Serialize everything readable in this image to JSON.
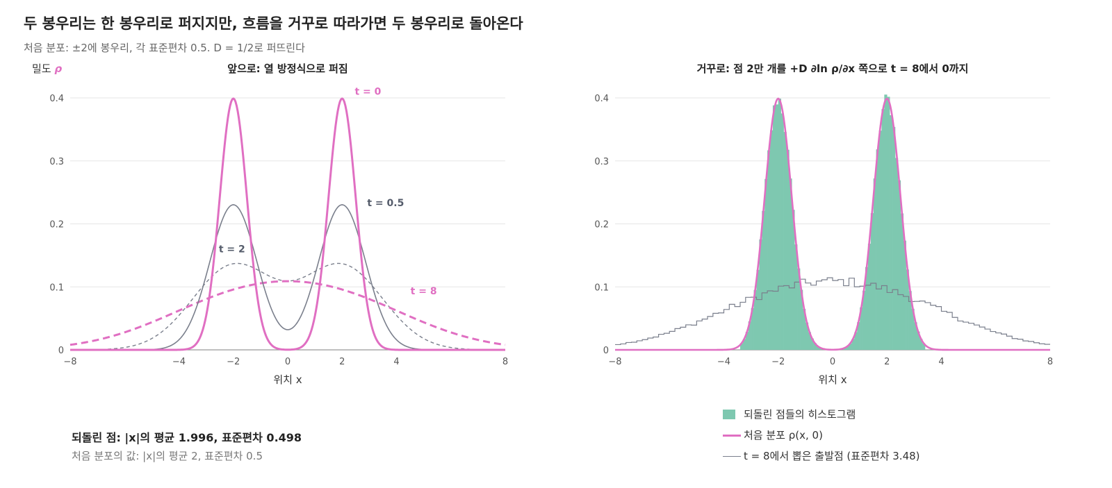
{
  "title": "두 봉우리는 한 봉우리로 퍼지지만, 흐름을 거꾸로 따라가면 두 봉우리로 돌아온다",
  "subtitle": "처음 분포: ±2에 봉우리, 각 표준편차 0.5. D = 1/2로 퍼뜨린다",
  "colors": {
    "pink": "#e06fc2",
    "gray": "#7a7f8c",
    "green": "#7ec8b0",
    "grid": "#e6e6e6"
  },
  "chart_data": [
    {
      "type": "line",
      "title": "앞으로: 열 방정식으로 퍼짐",
      "xlabel": "위치 x",
      "ylabel": "밀도 ρ",
      "xlim": [
        -8,
        8
      ],
      "ylim": [
        0,
        0.4
      ],
      "xticks": [
        "−8",
        "−4",
        "−2",
        "0",
        "2",
        "4",
        "8"
      ],
      "xtick_values": [
        -8,
        -4,
        -2,
        0,
        2,
        4,
        8
      ],
      "yticks": [
        "0",
        "0.1",
        "0.2",
        "0.3",
        "0.4"
      ],
      "ytick_values": [
        0,
        0.1,
        0.2,
        0.3,
        0.4
      ],
      "grid": true,
      "model": "mixture of two normals at ±2, variance 0.25 + t",
      "series": [
        {
          "name": "t = 0",
          "t": 0,
          "color": "#e06fc2",
          "style": "solid-bold"
        },
        {
          "name": "t = 0.5",
          "t": 0.5,
          "color": "#7a7f8c",
          "style": "solid"
        },
        {
          "name": "t = 2",
          "t": 2,
          "color": "#7a7f8c",
          "style": "dashed"
        },
        {
          "name": "t = 8",
          "t": 8,
          "color": "#e06fc2",
          "style": "dashed-bold"
        }
      ],
      "annotations": [
        {
          "text": "t = 0",
          "x": 2.95,
          "y": 0.405,
          "color": "#e06fc2"
        },
        {
          "text": "t = 0.5",
          "x": 3.6,
          "y": 0.228,
          "color": "#555c6b"
        },
        {
          "text": "t = 2",
          "x": -2.05,
          "y": 0.155,
          "color": "#555c6b"
        },
        {
          "text": "t = 8",
          "x": 5.0,
          "y": 0.088,
          "color": "#e06fc2"
        }
      ]
    },
    {
      "type": "bar",
      "title": "거꾸로: 점 2만 개를 +D ∂ln ρ/∂x 쪽으로 t = 8에서 0까지",
      "xlabel": "위치 x",
      "xlim": [
        -8,
        8
      ],
      "ylim": [
        0,
        0.4
      ],
      "xticks": [
        "−8",
        "−4",
        "−2",
        "0",
        "2",
        "4",
        "8"
      ],
      "xtick_values": [
        -8,
        -4,
        -2,
        0,
        2,
        4,
        8
      ],
      "yticks": [
        "0",
        "0.1",
        "0.2",
        "0.3",
        "0.4"
      ],
      "ytick_values": [
        0,
        0.1,
        0.2,
        0.3,
        0.4
      ],
      "grid": true,
      "series": [
        {
          "name": "되돌린 점들의 히스토그램",
          "kind": "histogram",
          "color": "#7ec8b0"
        },
        {
          "name": "처음 분포 ρ(x, 0)",
          "kind": "curve",
          "t": 0,
          "color": "#e06fc2"
        },
        {
          "name": "t = 8에서 뽑은 출발점 (표준편차 3.48)",
          "kind": "step",
          "color": "#7a7f8c"
        }
      ],
      "histogram_bin_width": 0.1,
      "starting_step_bin_width": 0.2
    }
  ],
  "stats": {
    "main": "되돌린 점: |x|의 평균 1.996, 표준편차 0.498",
    "sub": "처음 분포의 값: |x|의 평균 2, 표준편차 0.5"
  },
  "legend": [
    {
      "label": "되돌린 점들의 히스토그램",
      "icon": "green-square"
    },
    {
      "label": "처음 분포 ρ(x, 0)",
      "icon": "pink-line"
    },
    {
      "label": "t = 8에서 뽑은 출발점 (표준편차 3.48)",
      "icon": "gray-line"
    }
  ]
}
